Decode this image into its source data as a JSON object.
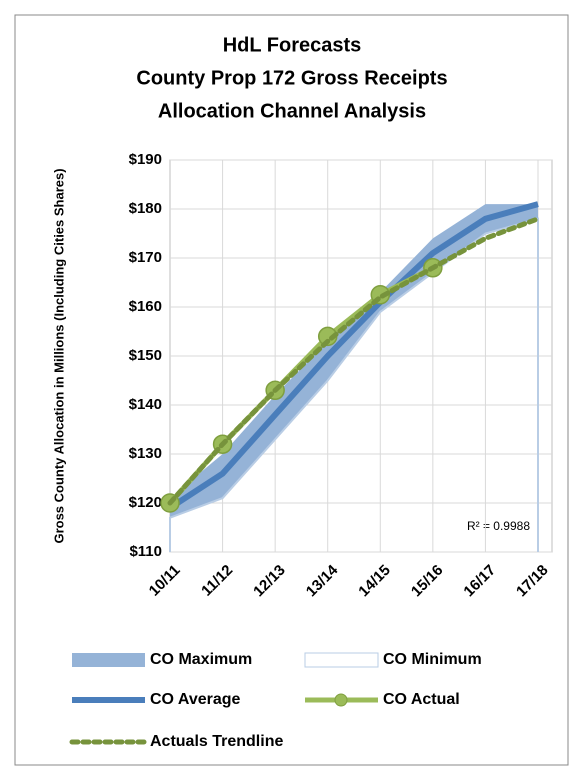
{
  "chart_data": {
    "type": "line",
    "title": [
      "HdL Forecasts",
      "County Prop 172 Gross Receipts",
      "Allocation Channel Analysis"
    ],
    "y_label": "Gross County Allocation in Millions (Including Cities Shares)",
    "annotation": "R² = 0.9988",
    "categories": [
      "10/11",
      "11/12",
      "12/13",
      "13/14",
      "14/15",
      "15/16",
      "16/17",
      "17/18"
    ],
    "series": [
      {
        "name": "CO Maximum",
        "color": "#95b3d7",
        "values": [
          121,
          130,
          142,
          153,
          163,
          174,
          181,
          181
        ]
      },
      {
        "name": "CO Minimum",
        "color": "#b9cde5",
        "values": [
          117,
          121,
          133,
          145,
          159,
          167,
          175,
          178
        ]
      },
      {
        "name": "CO Average",
        "color": "#4a7ebb",
        "values": [
          119,
          126,
          138,
          150,
          161,
          171,
          178,
          181
        ]
      },
      {
        "name": "CO Actual",
        "color": "#9bbb59",
        "values": [
          120,
          132,
          143,
          154,
          162.5,
          168,
          null,
          null
        ]
      },
      {
        "name": "Actuals Trendline",
        "color": "#77933c",
        "values": [
          120,
          132,
          143,
          153,
          162,
          168,
          174,
          178
        ]
      }
    ],
    "ylim": [
      110,
      190
    ],
    "yticks": [
      {
        "value": 110,
        "label": "$110"
      },
      {
        "value": 120,
        "label": "$120"
      },
      {
        "value": 130,
        "label": "$130"
      },
      {
        "value": 140,
        "label": "$140"
      },
      {
        "value": 150,
        "label": "$150"
      },
      {
        "value": 160,
        "label": "$160"
      },
      {
        "value": 170,
        "label": "$170"
      },
      {
        "value": 180,
        "label": "$180"
      },
      {
        "value": 190,
        "label": "$190"
      }
    ],
    "grid": true
  }
}
